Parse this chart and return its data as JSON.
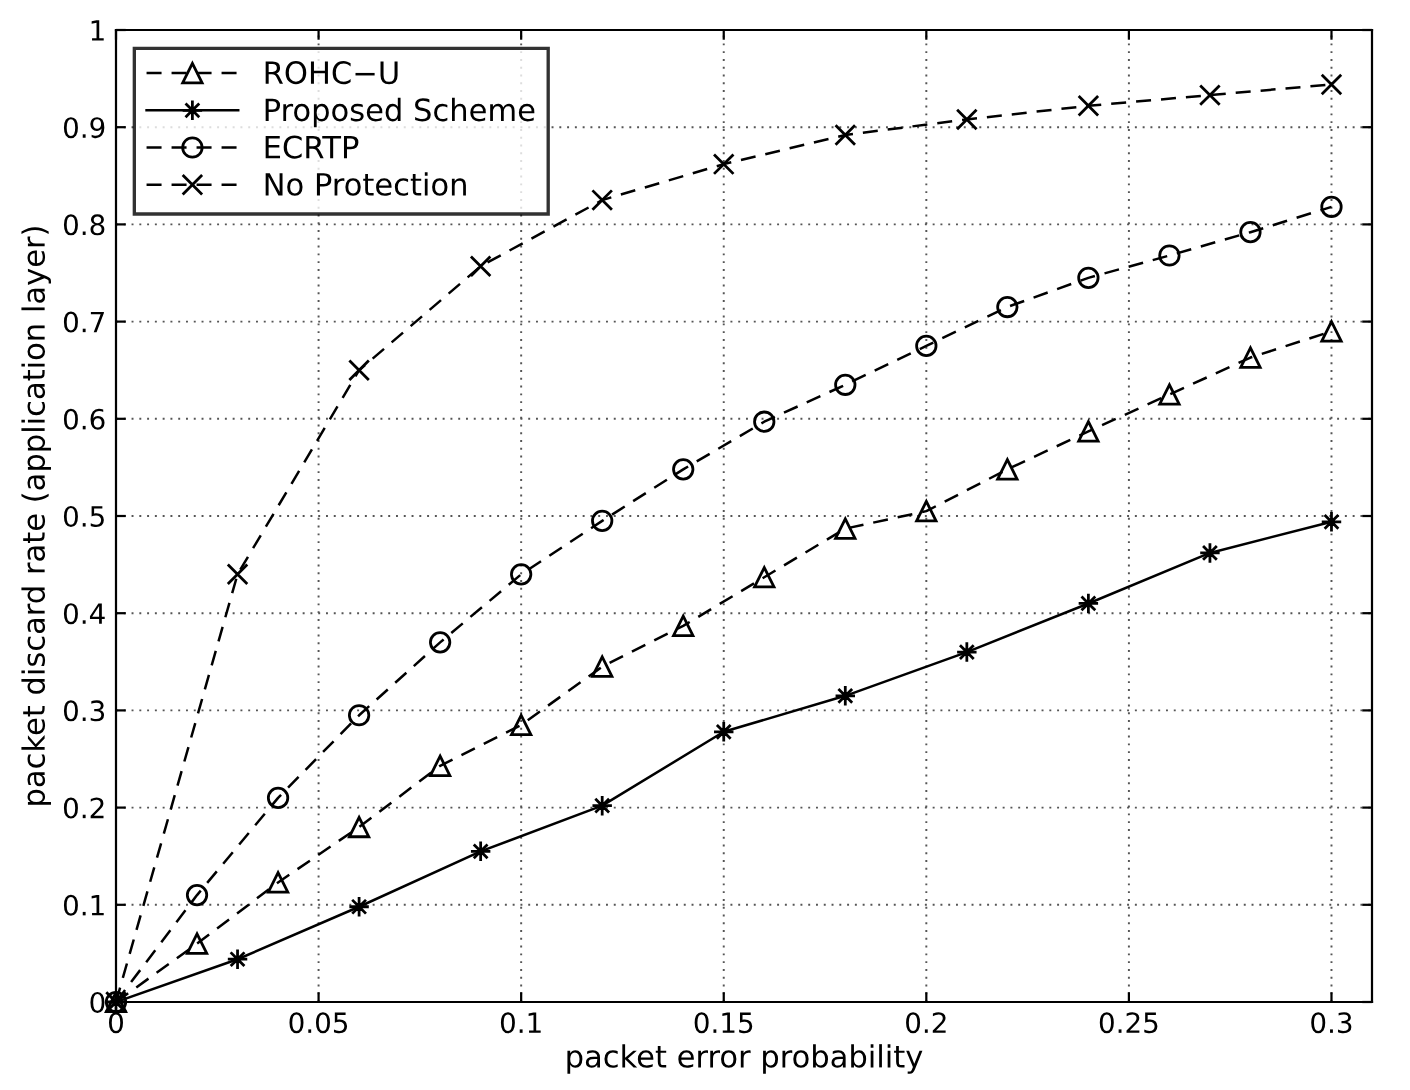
{
  "chart_data": {
    "type": "line",
    "xlabel": "packet error probability",
    "ylabel": "packet discard rate (application layer)",
    "xlim": [
      0,
      0.31
    ],
    "ylim": [
      0,
      1
    ],
    "xticks": [
      0,
      0.05,
      0.1,
      0.15,
      0.2,
      0.25,
      0.3
    ],
    "yticks": [
      0,
      0.1,
      0.2,
      0.3,
      0.4,
      0.5,
      0.6,
      0.7,
      0.8,
      0.9,
      1
    ],
    "grid": true,
    "legend": "top left",
    "series": [
      {
        "name": "ROHC−U",
        "color": "#000000",
        "marker": "triangle",
        "line_style": "dashed",
        "x": [
          0,
          0.02,
          0.04,
          0.06,
          0.08,
          0.1,
          0.12,
          0.14,
          0.16,
          0.18,
          0.2,
          0.22,
          0.24,
          0.26,
          0.28,
          0.3
        ],
        "values": [
          0,
          0.06,
          0.123,
          0.18,
          0.243,
          0.285,
          0.345,
          0.387,
          0.437,
          0.487,
          0.505,
          0.548,
          0.587,
          0.625,
          0.663,
          0.69
        ]
      },
      {
        "name": "Proposed Scheme",
        "color": "#000000",
        "marker": "star",
        "line_style": "solid",
        "x": [
          0,
          0.03,
          0.06,
          0.09,
          0.12,
          0.15,
          0.18,
          0.21,
          0.24,
          0.27,
          0.3
        ],
        "values": [
          0,
          0.044,
          0.098,
          0.155,
          0.202,
          0.278,
          0.315,
          0.36,
          0.41,
          0.462,
          0.494
        ]
      },
      {
        "name": "ECRTP",
        "color": "#000000",
        "marker": "circle",
        "line_style": "dashed",
        "x": [
          0,
          0.02,
          0.04,
          0.06,
          0.08,
          0.1,
          0.12,
          0.14,
          0.16,
          0.18,
          0.2,
          0.22,
          0.24,
          0.26,
          0.28,
          0.3
        ],
        "values": [
          0,
          0.11,
          0.21,
          0.295,
          0.37,
          0.44,
          0.495,
          0.548,
          0.597,
          0.635,
          0.675,
          0.715,
          0.745,
          0.768,
          0.792,
          0.818
        ]
      },
      {
        "name": "No Protection",
        "color": "#000000",
        "marker": "cross",
        "line_style": "dashed",
        "x": [
          0,
          0.03,
          0.06,
          0.09,
          0.12,
          0.15,
          0.18,
          0.21,
          0.24,
          0.27,
          0.3
        ],
        "values": [
          0,
          0.44,
          0.65,
          0.757,
          0.825,
          0.862,
          0.892,
          0.908,
          0.922,
          0.933,
          0.944
        ]
      }
    ]
  }
}
